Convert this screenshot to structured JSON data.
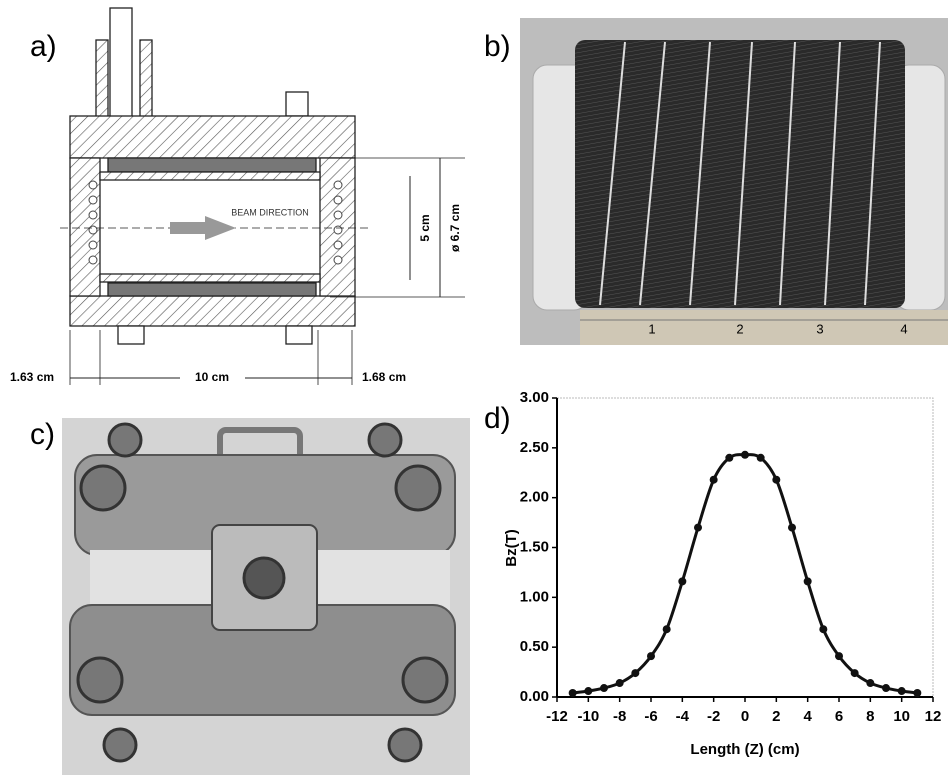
{
  "panel_labels": [
    "a)",
    "b)",
    "c)",
    "d)"
  ],
  "drawing": {
    "beam_direction": "BEAM DIRECTION",
    "inner_diameter": "5 cm",
    "outer_diameter": "ø 6.7 cm",
    "left_flange": "1.63 cm",
    "length": "10 cm",
    "right_flange": "1.68 cm"
  },
  "photo_b": {
    "ruler_labels": [
      "1",
      "2",
      "3",
      "4"
    ]
  },
  "chart_data": {
    "type": "line",
    "xlabel": "Length (Z) (cm)",
    "ylabel": "Bz(T)",
    "color": "#111111",
    "x": [
      -11,
      -10,
      -9,
      -8,
      -7,
      -6,
      -5,
      -4,
      -3,
      -2,
      -1,
      0,
      1,
      2,
      3,
      4,
      5,
      6,
      7,
      8,
      9,
      10,
      11
    ],
    "values": [
      0.04,
      0.06,
      0.09,
      0.14,
      0.24,
      0.41,
      0.68,
      1.16,
      1.7,
      2.18,
      2.4,
      2.43,
      2.4,
      2.18,
      1.7,
      1.16,
      0.68,
      0.41,
      0.24,
      0.14,
      0.09,
      0.06,
      0.04
    ],
    "xlim": [
      -12,
      12
    ],
    "xticks": [
      -12,
      -10,
      -8,
      -6,
      -4,
      -2,
      0,
      2,
      4,
      6,
      8,
      10,
      12
    ],
    "ylim": [
      0,
      3
    ],
    "yticks": [
      {
        "value": 0,
        "label": "0.00"
      },
      {
        "value": 0.5,
        "label": "0.50"
      },
      {
        "value": 1,
        "label": "1.00"
      },
      {
        "value": 1.5,
        "label": "1.50"
      },
      {
        "value": 2,
        "label": "2.00"
      },
      {
        "value": 2.5,
        "label": "2.50"
      },
      {
        "value": 3,
        "label": "3.00"
      }
    ]
  }
}
